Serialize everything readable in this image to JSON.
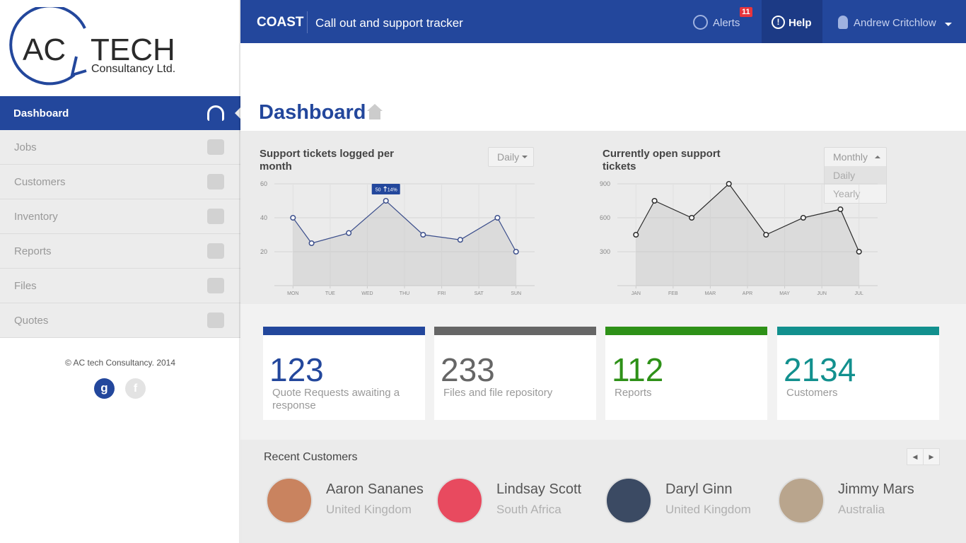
{
  "logo": {
    "ac": "AC",
    "tech": "TECH",
    "sub": "Consultancy Ltd."
  },
  "header": {
    "brand": "COAST",
    "subtitle": "Call out and support tracker",
    "alerts": "Alerts",
    "alerts_count": 11,
    "help": "Help",
    "user": "Andrew Critchlow"
  },
  "nav": [
    "Dashboard",
    "Jobs",
    "Customers",
    "Inventory",
    "Reports",
    "Files",
    "Quotes"
  ],
  "footer": {
    "copyright": "© AC tech Consultancy. 2014",
    "google": "g",
    "facebook": "f"
  },
  "page_title": "Dashboard",
  "chart_data": [
    {
      "type": "line",
      "title": "Support tickets logged per month",
      "dropdown": "Daily",
      "x": [
        0,
        0.5,
        1.5,
        2.5,
        3.5,
        4.5,
        5.5,
        6
      ],
      "series": [
        {
          "name": "Tickets",
          "color": "#3c4f8c",
          "values": [
            40,
            25,
            31,
            50,
            30,
            27,
            40,
            20
          ]
        }
      ],
      "annotation": "50",
      "annotation_change": "14%",
      "xlim": [
        -0.5,
        6.5
      ],
      "xticks": [
        {
          "value": 0,
          "label": "MON"
        },
        {
          "value": 1,
          "label": "TUE"
        },
        {
          "value": 2,
          "label": "WED"
        },
        {
          "value": 3,
          "label": "THU"
        },
        {
          "value": 4,
          "label": "FRI"
        },
        {
          "value": 5,
          "label": "SAT"
        },
        {
          "value": 6,
          "label": "SUN"
        }
      ],
      "ylim": [
        0,
        60
      ],
      "yticks": [
        20,
        40,
        60
      ],
      "grid": true
    },
    {
      "type": "line",
      "title": "Currently open support tickets",
      "dropdown": "Monthly",
      "dropdown_options": [
        "Daily",
        "Yearly"
      ],
      "x": [
        0,
        0.5,
        1.5,
        2.5,
        3.5,
        4.5,
        5.5,
        6
      ],
      "series": [
        {
          "name": "Open tickets",
          "color": "#2b2b2b",
          "values": [
            450,
            750,
            600,
            900,
            450,
            600,
            675,
            300
          ]
        }
      ],
      "xlim": [
        -0.5,
        6.5
      ],
      "xticks": [
        {
          "value": 0,
          "label": "JAN"
        },
        {
          "value": 1,
          "label": "FEB"
        },
        {
          "value": 2,
          "label": "MAR"
        },
        {
          "value": 3,
          "label": "APR"
        },
        {
          "value": 4,
          "label": "MAY"
        },
        {
          "value": 5,
          "label": "JUN"
        },
        {
          "value": 6,
          "label": "JUL"
        }
      ],
      "ylim": [
        0,
        900
      ],
      "yticks": [
        300,
        600,
        900
      ],
      "grid": true
    }
  ],
  "stats": [
    {
      "value": 123,
      "label": "Quote Requests awaiting a response",
      "color": "#23479c"
    },
    {
      "value": 233,
      "label": "Files and file repository",
      "color": "#666666"
    },
    {
      "value": 112,
      "label": "Reports",
      "color": "#2e9118"
    },
    {
      "value": 2134,
      "label": "Customers",
      "color": "#12908e"
    }
  ],
  "recent": {
    "title": "Recent Customers",
    "customers": [
      {
        "name": "Aaron Sananes",
        "country": "United Kingdom"
      },
      {
        "name": "Lindsay Scott",
        "country": "South Africa"
      },
      {
        "name": "Daryl Ginn",
        "country": "United Kingdom"
      },
      {
        "name": "Jimmy Mars",
        "country": "Australia"
      }
    ]
  }
}
